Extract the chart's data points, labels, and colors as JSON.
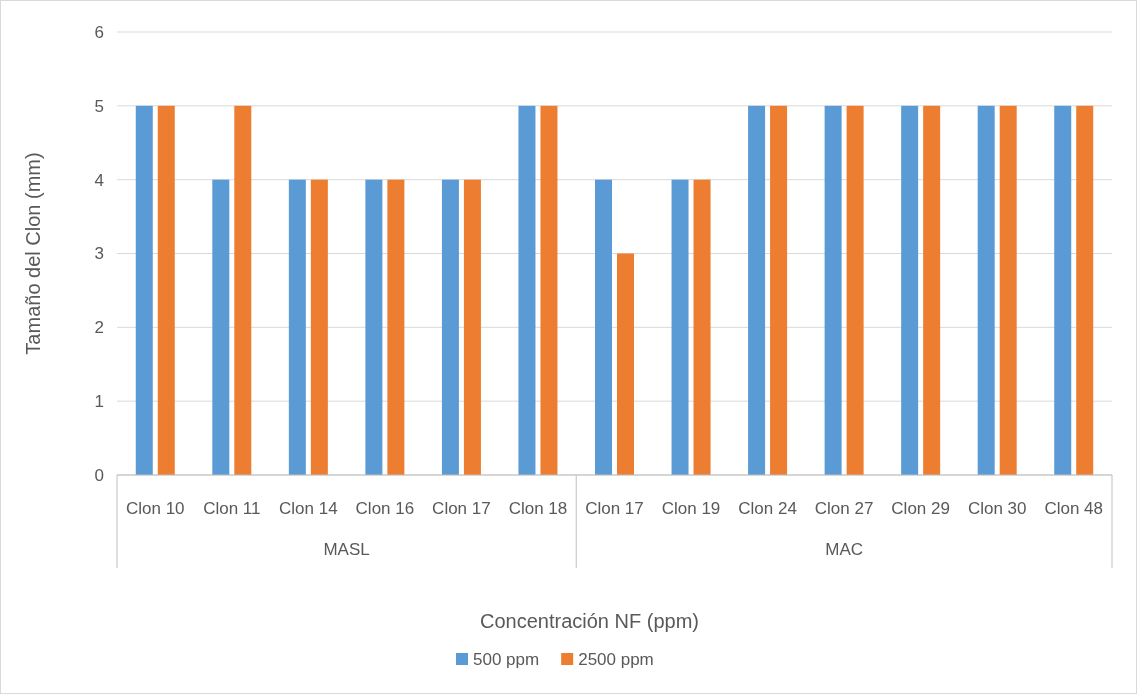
{
  "chart_data": {
    "type": "bar",
    "xlabel": "Concentración NF (ppm)",
    "ylabel": "Tamaño del Clon (mm)",
    "categories": [
      "Clon 10",
      "Clon 11",
      "Clon 14",
      "Clon 16",
      "Clon 17",
      "Clon 18",
      "Clon 17",
      "Clon 19",
      "Clon 24",
      "Clon 27",
      "Clon 29",
      "Clon 30",
      "Clon 48"
    ],
    "series": [
      {
        "name": "500 ppm",
        "color": "#5b9bd5",
        "values": [
          5,
          4,
          4,
          4,
          4,
          5,
          4,
          4,
          5,
          5,
          5,
          5,
          5
        ]
      },
      {
        "name": "2500 ppm",
        "color": "#ed7d31",
        "values": [
          5,
          5,
          4,
          4,
          4,
          5,
          3,
          4,
          5,
          5,
          5,
          5,
          5
        ]
      }
    ],
    "ylim": [
      0,
      6
    ],
    "yticks": [
      0,
      1,
      2,
      3,
      4,
      5,
      6
    ],
    "grid": "y",
    "legend": "bottom",
    "annotations": [
      "MASL",
      "MAC"
    ]
  }
}
